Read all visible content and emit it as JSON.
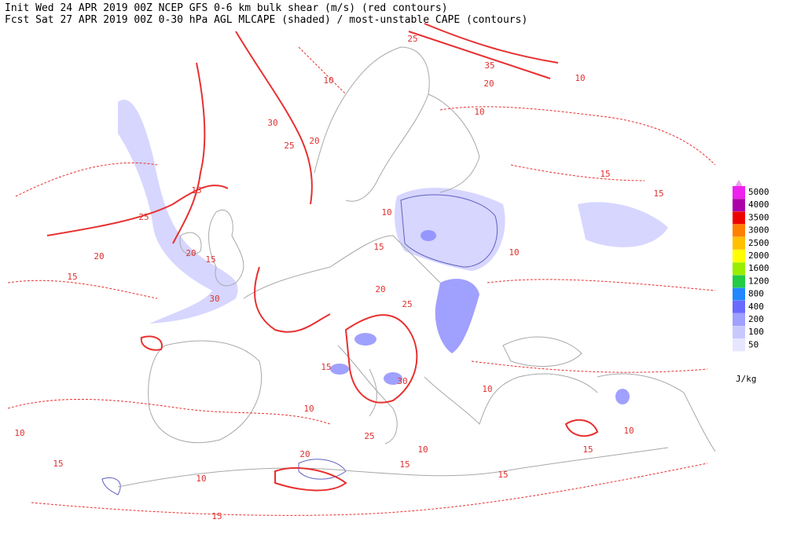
{
  "header": {
    "line1": "Init  Wed 24 APR 2019 00Z  NCEP GFS 0-6 km bulk shear (m/s) (red contours)",
    "line2": "Fcst Sat 27 APR 2019 00Z  0-30 hPa AGL MLCAPE (shaded) / most-unstable CAPE (contours)"
  },
  "legend": {
    "unit": "J/kg",
    "levels": [
      {
        "value": 5000,
        "color": "#ee22ee"
      },
      {
        "value": 4000,
        "color": "#aa00aa"
      },
      {
        "value": 3500,
        "color": "#ee0000"
      },
      {
        "value": 3000,
        "color": "#ff8000"
      },
      {
        "value": 2500,
        "color": "#ffc000"
      },
      {
        "value": 2000,
        "color": "#ffff00"
      },
      {
        "value": 1600,
        "color": "#99ee00"
      },
      {
        "value": 1200,
        "color": "#22cc44"
      },
      {
        "value": 800,
        "color": "#2288ff"
      },
      {
        "value": 400,
        "color": "#6a6aff"
      },
      {
        "value": 200,
        "color": "#a0a0ff"
      },
      {
        "value": 100,
        "color": "#c8c8ff"
      },
      {
        "value": 50,
        "color": "#e6e6ff"
      }
    ]
  },
  "map": {
    "shear_labels": [
      10,
      30,
      25,
      20,
      15,
      25,
      20,
      15,
      20,
      15,
      30,
      10,
      15,
      20,
      25,
      15,
      30,
      10,
      25,
      20,
      15,
      10,
      10,
      15,
      10,
      15,
      10,
      15,
      15,
      10,
      10,
      10,
      15,
      15,
      35,
      20,
      25,
      10
    ]
  }
}
